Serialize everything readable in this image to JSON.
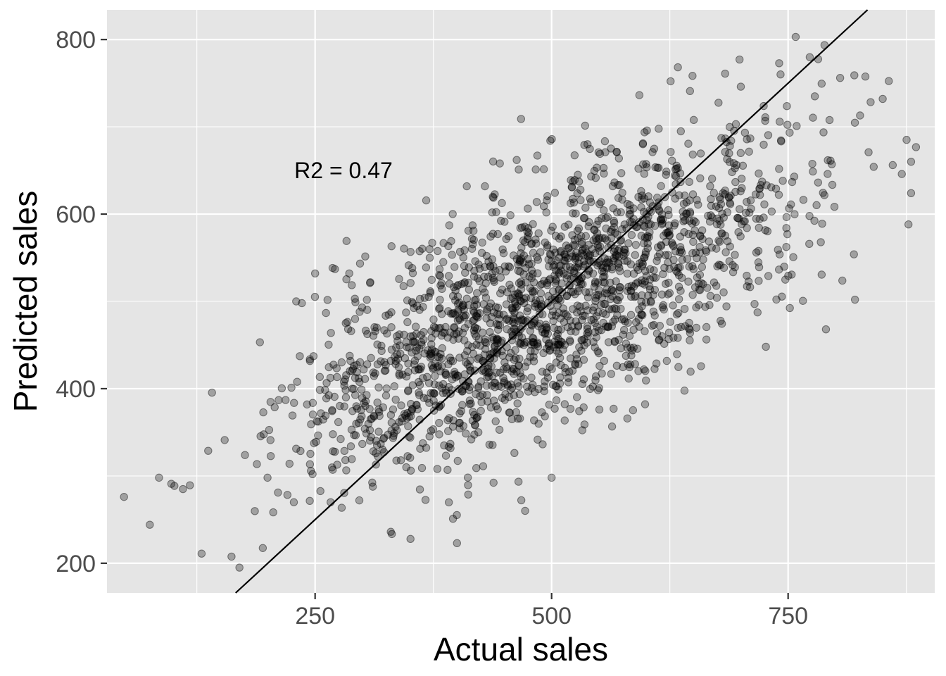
{
  "chart_data": {
    "type": "scatter",
    "title": "",
    "xlabel": "Actual sales",
    "ylabel": "Predicted sales",
    "xlim": [
      30,
      905
    ],
    "ylim": [
      166,
      834
    ],
    "x_ticks": [
      250,
      500,
      750
    ],
    "y_ticks": [
      200,
      400,
      600,
      800
    ],
    "x_minor_grid": [
      125,
      375,
      625,
      875
    ],
    "y_minor_grid": [
      300,
      500,
      700
    ],
    "grid": true,
    "background_color": "#e5e5e5",
    "grid_color": "#ffffff",
    "point_color": "#000000",
    "point_opacity": 0.3,
    "annotation": {
      "text": "R2 = 0.47",
      "x": 280,
      "y": 650
    },
    "reference_line": {
      "type": "identity",
      "points": [
        [
          150,
          150
        ],
        [
          850,
          850
        ]
      ],
      "color": "#000000"
    },
    "notable_points": [
      {
        "x": 48,
        "y": 276
      },
      {
        "x": 85,
        "y": 298
      },
      {
        "x": 98,
        "y": 291
      },
      {
        "x": 130,
        "y": 211
      },
      {
        "x": 170,
        "y": 195
      },
      {
        "x": 758,
        "y": 803
      },
      {
        "x": 742,
        "y": 760
      },
      {
        "x": 700,
        "y": 746
      },
      {
        "x": 805,
        "y": 756
      },
      {
        "x": 820,
        "y": 759
      },
      {
        "x": 850,
        "y": 732
      },
      {
        "x": 880,
        "y": 660
      },
      {
        "x": 880,
        "y": 624
      },
      {
        "x": 790,
        "y": 468
      },
      {
        "x": 250,
        "y": 532
      },
      {
        "x": 271,
        "y": 537
      },
      {
        "x": 230,
        "y": 500
      },
      {
        "x": 236,
        "y": 498
      },
      {
        "x": 400,
        "y": 223
      },
      {
        "x": 330,
        "y": 236
      },
      {
        "x": 472,
        "y": 260
      },
      {
        "x": 500,
        "y": 298
      },
      {
        "x": 538,
        "y": 680
      }
    ],
    "cloud": {
      "n": 2000,
      "x_mean": 500,
      "x_sd": 130,
      "y_mean": 500,
      "y_sd": 95,
      "correlation": 0.69
    }
  }
}
